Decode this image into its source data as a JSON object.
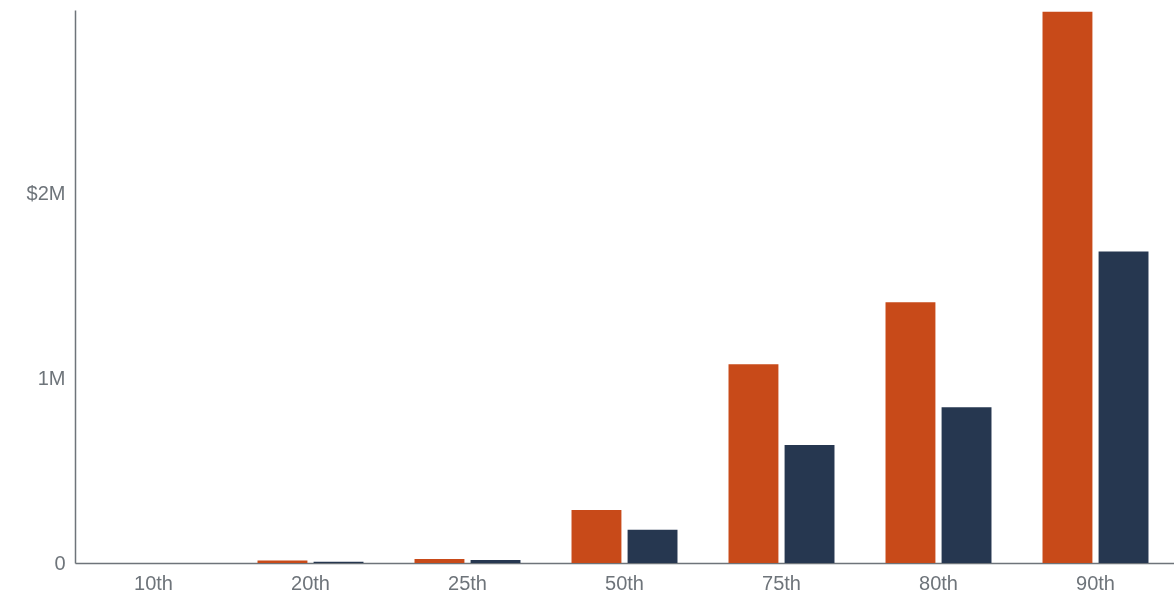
{
  "chart_data": {
    "type": "bar",
    "categories": [
      "10th",
      "20th",
      "25th",
      "50th",
      "75th",
      "80th",
      "90th"
    ],
    "series": [
      {
        "color": "#c84a19",
        "values": [
          0,
          13000,
          22000,
          287000,
          1075000,
          1410000,
          2980000
        ]
      },
      {
        "color": "#263750",
        "values": [
          0,
          7000,
          16000,
          180000,
          638000,
          842000,
          1684000
        ]
      }
    ],
    "ylim": [
      0,
      2990000
    ],
    "yticks": [
      0,
      {
        "value": 1000000,
        "label": "1M"
      },
      {
        "value": 2000000,
        "label": "$2M"
      }
    ]
  }
}
